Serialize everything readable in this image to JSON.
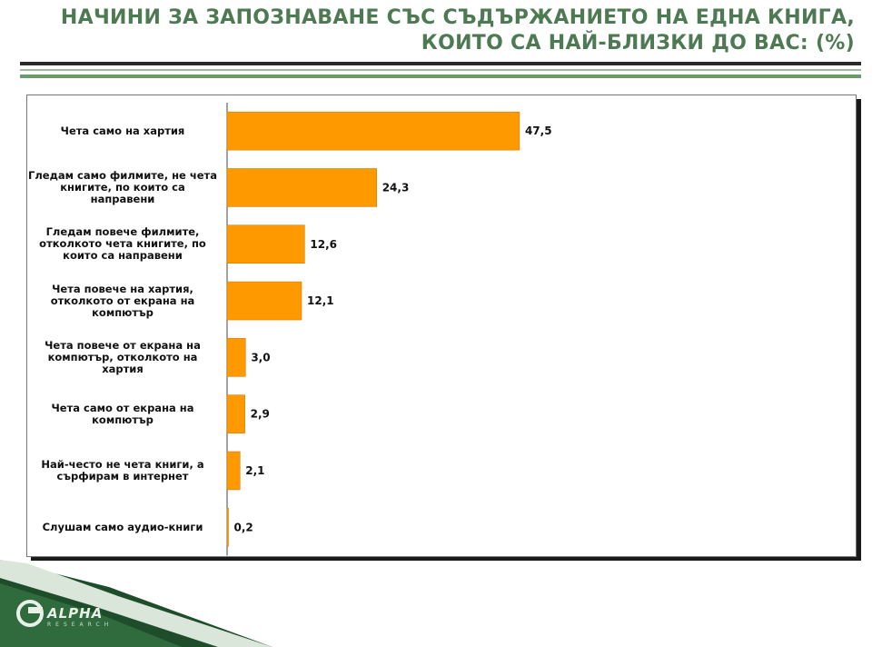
{
  "title": {
    "line1": "НАЧИНИ ЗА ЗАПОЗНАВАНЕ СЪС СЪДЪРЖАНИЕТО НА ЕДНА КНИГА,",
    "line2": "КОИТО СА НАЙ-БЛИЗКИ ДО ВАС: (%)"
  },
  "colors": {
    "title": "#4d7a52",
    "bar": "#ff9900",
    "bar_edge": "#c67600"
  },
  "logo": {
    "word": "ALPHA",
    "sub": "RESEARCH",
    "icon": "alpha-logo-icon"
  },
  "chart_data": {
    "type": "bar",
    "orientation": "horizontal",
    "categories": [
      "Чета само на хартия",
      "Гледам само филмите, не чета книгите, по които са направени",
      "Гледам повече филмите, отколкото чета книгите, по които са направени",
      "Чета повече на хартия, отколкото от екрана на компютър",
      "Чета повече от екрана на компютър, отколкото на хартия",
      "Чета само от екрана на компютър",
      "Най-често не чета книги, а сърфирам в интернет",
      "Слушам само аудио-книги"
    ],
    "category_lines": [
      [
        "Чета само на хартия"
      ],
      [
        "Гледам само филмите, не",
        "чета книгите, по които са",
        "направени"
      ],
      [
        "Гледам повече филмите,",
        "отколкото чета книгите, по",
        "които са направени"
      ],
      [
        "Чета повече на хартия,",
        "отколкото от екрана на",
        "компютър"
      ],
      [
        "Чета повече от екрана на",
        "компютър, отколкото на",
        "хартия"
      ],
      [
        "Чета само от екрана на",
        "компютър"
      ],
      [
        "Най-често не чета книги, а",
        "сърфирам в интернет"
      ],
      [
        "Слушам само аудио-книги"
      ]
    ],
    "values": [
      47.5,
      24.3,
      12.6,
      12.1,
      3.0,
      2.9,
      2.1,
      0.2
    ],
    "value_labels": [
      "47,5",
      "24,3",
      "12,6",
      "12,1",
      "3,0",
      "2,9",
      "2,1",
      "0,2"
    ],
    "xlim": [
      0,
      90
    ],
    "grid": false,
    "legend": "none"
  }
}
